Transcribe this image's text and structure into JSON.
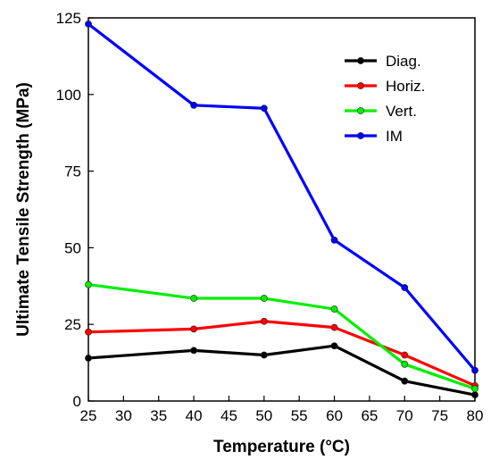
{
  "chart_data": {
    "type": "line",
    "title": "",
    "xlabel": "Temperature (°C)",
    "ylabel": "Ultimate Tensile Strength (MPa)",
    "xlim": [
      25,
      80
    ],
    "ylim": [
      0,
      125
    ],
    "xticks": [
      25,
      30,
      35,
      40,
      45,
      50,
      55,
      60,
      65,
      70,
      75,
      80
    ],
    "yticks": [
      0,
      25,
      50,
      75,
      100,
      125
    ],
    "grid": false,
    "legend_position": "top-right",
    "x": [
      25,
      40,
      50,
      60,
      70,
      80
    ],
    "series": [
      {
        "name": "Diag.",
        "color": "#000000",
        "values": [
          14,
          16.5,
          15,
          18,
          6.5,
          2
        ]
      },
      {
        "name": "Horiz.",
        "color": "#ff0000",
        "values": [
          22.5,
          23.5,
          26,
          24,
          15,
          5
        ]
      },
      {
        "name": "Vert.",
        "color": "#00ee00",
        "values": [
          38,
          33.5,
          33.5,
          30,
          12,
          4
        ]
      },
      {
        "name": "IM",
        "color": "#0000ff",
        "values": [
          123,
          96.5,
          95.5,
          52.5,
          37,
          10
        ]
      }
    ]
  }
}
